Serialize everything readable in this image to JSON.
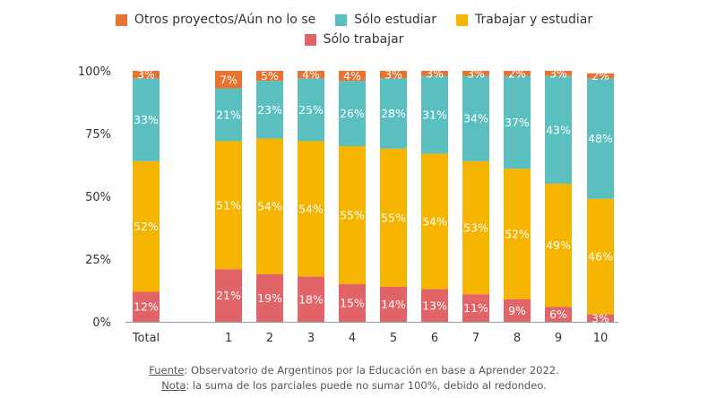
{
  "legend": {
    "items": [
      {
        "name": "Otros proyectos/Aún no lo se",
        "color": "#E8732F"
      },
      {
        "name": "Sólo estudiar",
        "color": "#5BBFBF"
      },
      {
        "name": "Trabajar y estudiar",
        "color": "#F5B400"
      },
      {
        "name": "Sólo trabajar",
        "color": "#E06468"
      }
    ]
  },
  "footer": {
    "source_label": "Fuente",
    "source_text": ": Observatorio de Argentinos por la Educación en base a Aprender 2022.",
    "note_label": "Nota",
    "note_text": ": la suma de los parciales puede no sumar 100%, debido al redondeo."
  },
  "chart_data": {
    "type": "bar",
    "stacked": true,
    "categories": [
      "Total",
      "1",
      "2",
      "3",
      "4",
      "5",
      "6",
      "7",
      "8",
      "9",
      "10"
    ],
    "y_ticks": [
      "0%",
      "25%",
      "50%",
      "75%",
      "100%"
    ],
    "ylim": [
      0,
      100
    ],
    "series": [
      {
        "name": "Sólo trabajar",
        "color": "#E06468",
        "values": [
          12,
          21,
          19,
          18,
          15,
          14,
          13,
          11,
          9,
          6,
          3
        ]
      },
      {
        "name": "Trabajar y estudiar",
        "color": "#F5B400",
        "values": [
          52,
          51,
          54,
          54,
          55,
          55,
          54,
          53,
          52,
          49,
          46
        ]
      },
      {
        "name": "Sólo estudiar",
        "color": "#5BBFBF",
        "values": [
          33,
          21,
          23,
          25,
          26,
          28,
          31,
          34,
          37,
          43,
          48
        ]
      },
      {
        "name": "Otros proyectos/Aún no lo se",
        "color": "#E8732F",
        "values": [
          3,
          7,
          5,
          4,
          4,
          3,
          3,
          3,
          2,
          3,
          2
        ]
      }
    ]
  }
}
